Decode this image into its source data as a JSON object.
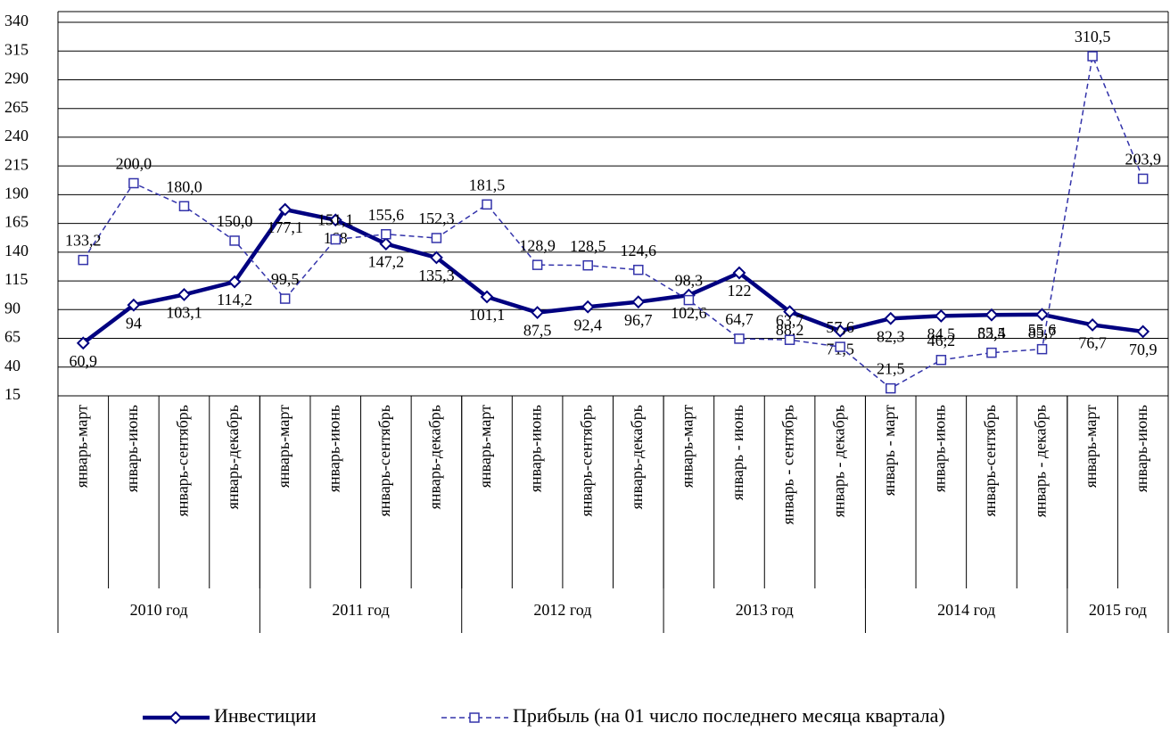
{
  "chart_data": {
    "type": "line",
    "categories": [
      "январь-март",
      "январь-июнь",
      "январь-сентябрь",
      "январь-декабрь",
      "январь-март",
      "январь-июнь",
      "январь-сентябрь",
      "январь-декабрь",
      "январь-март",
      "январь-июнь",
      "январь-сентябрь",
      "январь-декабрь",
      "январь-март",
      "январь - июнь",
      "январь - сентябрь",
      "январь - декабрь",
      "январь - март",
      "январь-июнь",
      "январь-сентябрь",
      "январь - декабрь",
      "январь-март",
      "январь-июнь"
    ],
    "groups": [
      {
        "label": "2010 год",
        "size": 4
      },
      {
        "label": "2011 год",
        "size": 4
      },
      {
        "label": "2012 год",
        "size": 4
      },
      {
        "label": "2013 год",
        "size": 4
      },
      {
        "label": "2014 год",
        "size": 4
      },
      {
        "label": "2015 год",
        "size": 2
      }
    ],
    "series": [
      {
        "name": "Инвестиции",
        "color": "#000080",
        "style": "solid",
        "marker": "diamond",
        "values": [
          60.9,
          94,
          103.1,
          114.2,
          177.1,
          168,
          147.2,
          135.3,
          101.1,
          87.5,
          92.4,
          96.7,
          102.6,
          122,
          88.2,
          71.5,
          82.3,
          84.5,
          85.4,
          85.7,
          76.7,
          70.9
        ],
        "value_labels": [
          "60,9",
          "94",
          "103,1",
          "114,2",
          "177,1",
          "168",
          "147,2",
          "135,3",
          "101,1",
          "87,5",
          "92,4",
          "96,7",
          "102,6",
          "122",
          "88,2",
          "71,5",
          "82,3",
          "84,5",
          "85,4",
          "85,7",
          "76,7",
          "70,9"
        ]
      },
      {
        "name": "Прибыль (на 01 число последнего месяца квартала)",
        "color": "#3333aa",
        "style": "dashed",
        "marker": "square",
        "values": [
          133.2,
          200.0,
          180.0,
          150.0,
          99.5,
          151.1,
          155.6,
          152.3,
          181.5,
          128.9,
          128.5,
          124.6,
          98.3,
          64.7,
          63.7,
          57.6,
          21.5,
          46.2,
          52.5,
          55.6,
          310.5,
          203.9
        ],
        "value_labels": [
          "133,2",
          "200,0",
          "180,0",
          "150,0",
          "99,5",
          "151,1",
          "155,6",
          "152,3",
          "181,5",
          "128,9",
          "128,5",
          "124,6",
          "98,3",
          "64,7",
          "63,7",
          "57,6",
          "21,5",
          "46,2",
          "52,5",
          "55,6",
          "310,5",
          "203,9"
        ]
      }
    ],
    "ylim": [
      15,
      340
    ],
    "yticks": [
      15,
      40,
      65,
      90,
      115,
      140,
      165,
      190,
      215,
      240,
      265,
      290,
      315,
      340
    ],
    "grid": true
  }
}
